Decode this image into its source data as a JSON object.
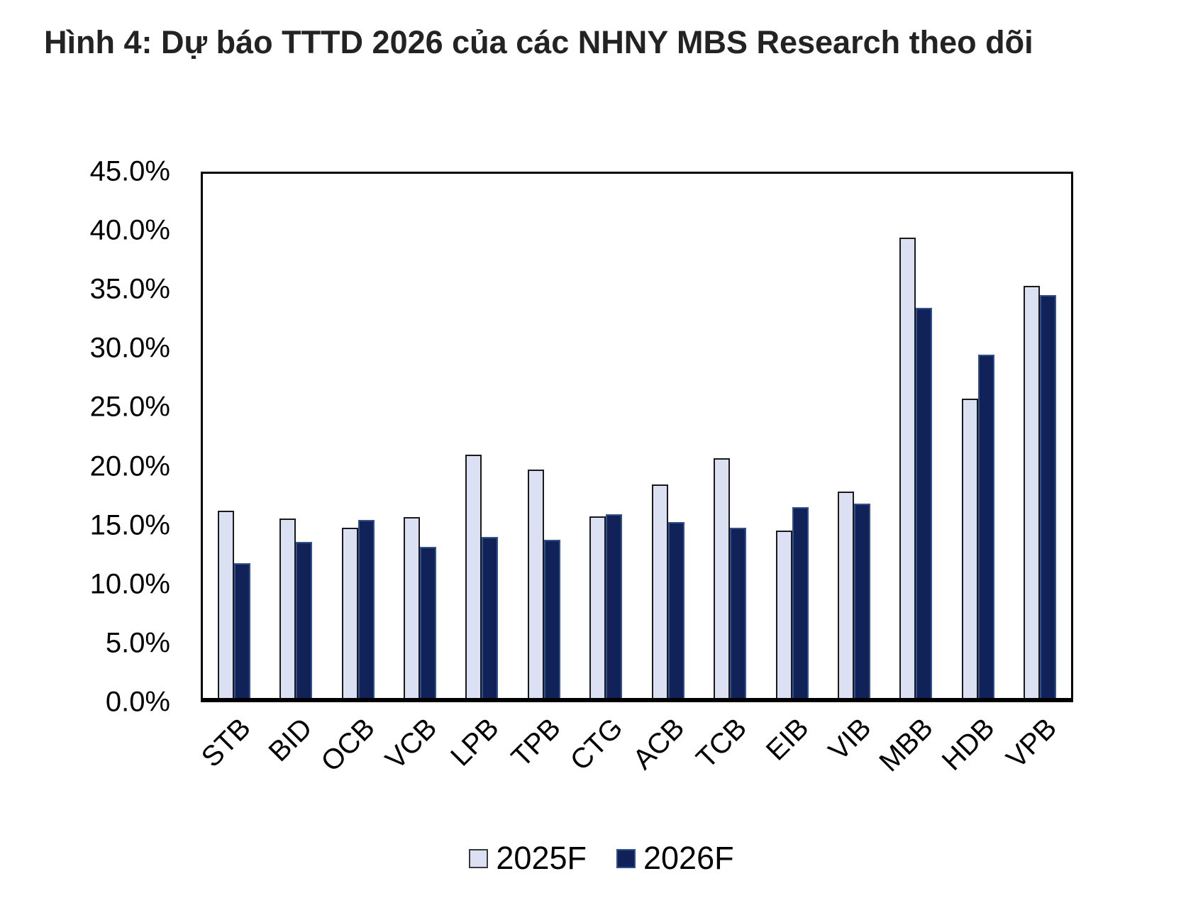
{
  "title": "Hình 4: Dự báo TTTD 2026 của các NHNY MBS Research theo dõi",
  "chart_data": {
    "type": "bar",
    "title": "Hình 4: Dự báo TTTD 2026 của các NHNY MBS Research theo dõi",
    "categories": [
      "STB",
      "BID",
      "OCB",
      "VCB",
      "LPB",
      "TPB",
      "CTG",
      "ACB",
      "TCB",
      "EIB",
      "VIB",
      "MBB",
      "HDB",
      "VPB"
    ],
    "series": [
      {
        "name": "2025F",
        "color": "#dbe1f2",
        "border_color": "#1a1a1a",
        "values": [
          16.1,
          15.4,
          14.6,
          15.5,
          20.9,
          19.6,
          15.6,
          18.3,
          20.6,
          14.4,
          17.7,
          39.5,
          25.7,
          35.4
        ]
      },
      {
        "name": "2026F",
        "color": "#112259",
        "border_color": "#32508c",
        "values": [
          11.6,
          13.4,
          15.3,
          13.0,
          13.8,
          13.6,
          15.8,
          15.1,
          14.6,
          16.4,
          16.7,
          33.5,
          29.5,
          34.6
        ]
      }
    ],
    "xlabel": "",
    "ylabel": "",
    "ylim": [
      0,
      45
    ],
    "yticks": [
      "45.0%",
      "40.0%",
      "35.0%",
      "30.0%",
      "25.0%",
      "20.0%",
      "15.0%",
      "10.0%",
      "5.0%",
      "0.0%"
    ],
    "ytick_values": [
      45,
      40,
      35,
      30,
      25,
      20,
      15,
      10,
      5,
      0
    ],
    "grid": false,
    "legend_position": "bottom",
    "value_unit": "%"
  }
}
